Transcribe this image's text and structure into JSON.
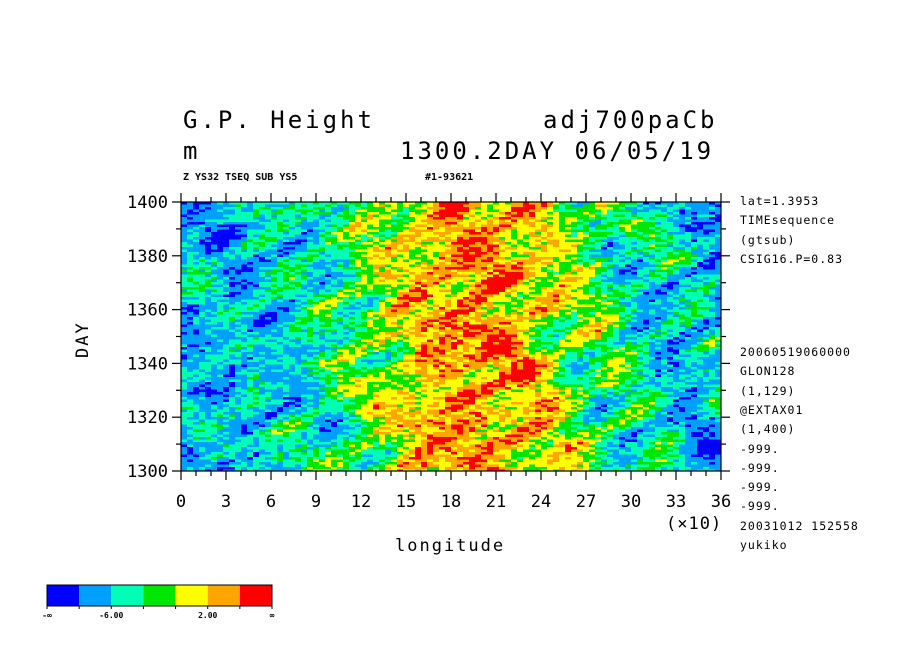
{
  "header": {
    "title_left": "G.P. Height",
    "title_right": "adj700paCb",
    "unit": "m",
    "time_label": "1300.2DAY 06/05/19",
    "sub_left": "Z YS32 TSEQ SUB YS5",
    "sub_right": "#1-93621"
  },
  "side_info": {
    "lines_top": [
      "lat=1.3953",
      "TIMEsequence",
      "(gtsub)",
      "CSIG16.P=0.83"
    ],
    "lines_bottom": [
      "20060519060000",
      "GLON128",
      "(1,129)",
      "@EXTAX01",
      "(1,400)",
      "-999.",
      "-999.",
      "-999.",
      "-999.",
      "20031012 152558",
      "yukiko"
    ]
  },
  "chart_data": {
    "type": "heatmap",
    "title": "G.P. Height",
    "xlabel": "longitude",
    "ylabel": "DAY",
    "x_multiplier_label": "(×10)",
    "xlim": [
      0,
      36
    ],
    "ylim": [
      1300,
      1400
    ],
    "x_ticks": [
      "0",
      "3",
      "6",
      "9",
      "12",
      "15",
      "18",
      "21",
      "24",
      "27",
      "30",
      "33",
      "36"
    ],
    "y_ticks": [
      "1300",
      "1320",
      "1340",
      "1360",
      "1380",
      "1400"
    ],
    "colorbar": {
      "colors": [
        "#0000ff",
        "#00a0ff",
        "#00ffb4",
        "#00e600",
        "#ffff00",
        "#ffa500",
        "#ff0000"
      ],
      "labels": [
        "-∞",
        "-6.00",
        "2.00",
        "∞"
      ]
    },
    "pattern": "Zonal anomaly field: negative values (blue/cyan) near longitudes 0-9 and 30-36, positive values (yellow/orange/red) concentrated near longitudes 15-24 across all days 1300-1400"
  }
}
